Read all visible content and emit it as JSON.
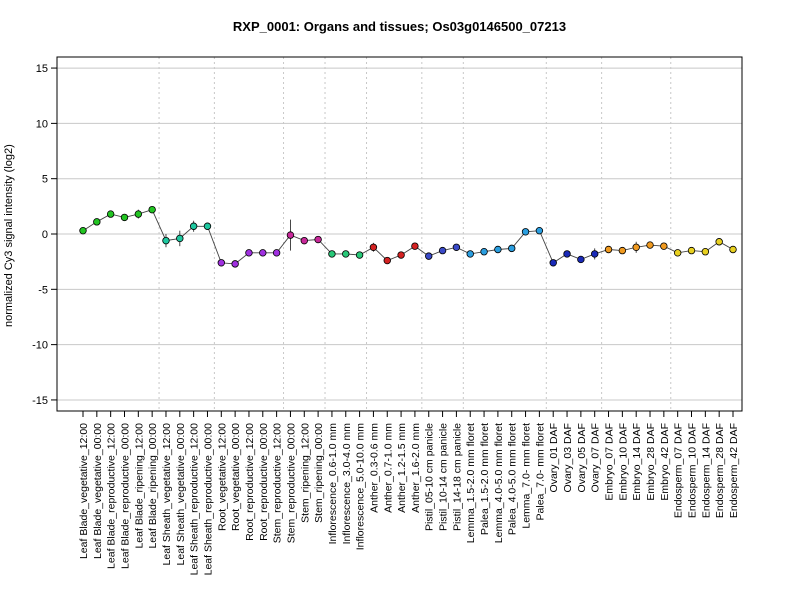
{
  "chart_data": {
    "type": "line",
    "title": "RXP_0001: Organs and tissues; Os03g0146500_07213",
    "xlabel": "",
    "ylabel": "normalized Cy3 signal intensity (log2)",
    "ylim": [
      -16,
      16
    ],
    "yticks": [
      -15,
      -10,
      -5,
      0,
      5,
      10,
      15
    ],
    "grid": "horizontal solid gridlines; vertical dotted separators between tissue groups",
    "legend": "none",
    "categories": [
      "Leaf Blade_vegetative_12:00",
      "Leaf Blade_vegetative_00:00",
      "Leaf Blade_reproductive_12:00",
      "Leaf Blade_reproductive_00:00",
      "Leaf Blade_ripening_12:00",
      "Leaf Blade_ripening_00:00",
      "Leaf Sheath_vegetative_12:00",
      "Leaf Sheath_vegetative_00:00",
      "Leaf Sheath_reproductive_12:00",
      "Leaf Sheath_reproductive_00:00",
      "Root_vegetative_12:00",
      "Root_vegetative_00:00",
      "Root_reproductive_12:00",
      "Root_reproductive_00:00",
      "Stem_reproductive_12:00",
      "Stem_reproductive_00:00",
      "Stem_ripening_12:00",
      "Stem_ripening_00:00",
      "Inflorescence_0.6-1.0 mm",
      "Inflorescence_3.0-4.0 mm",
      "Inflorescence_5.0-10.0 mm",
      "Anther_0.3-0.6 mm",
      "Anther_0.7-1.0 mm",
      "Anther_1.2-1.5 mm",
      "Anther_1.6-2.0 mm",
      "Pistil_05-10 cm panicle",
      "Pistil_10-14 cm panicle",
      "Pistil_14-18 cm panicle",
      "Lemma_1.5-2.0 mm floret",
      "Palea_1.5-2.0 mm floret",
      "Lemma_4.0-5.0 mm floret",
      "Palea_4.0-5.0 mm floret",
      "Lemma_7.0- mm floret",
      "Palea_7.0- mm floret",
      "Ovary_01 DAF",
      "Ovary_03 DAF",
      "Ovary_05 DAF",
      "Ovary_07 DAF",
      "Embryo_07 DAF",
      "Embryo_10 DAF",
      "Embryo_14 DAF",
      "Embryo_28 DAF",
      "Embryo_42 DAF",
      "Endosperm_07 DAF",
      "Endosperm_10 DAF",
      "Endosperm_14 DAF",
      "Endosperm_28 DAF",
      "Endosperm_42 DAF"
    ],
    "values": [
      0.3,
      1.1,
      1.8,
      1.5,
      1.8,
      2.2,
      -0.6,
      -0.4,
      0.7,
      0.7,
      -2.6,
      -2.7,
      -1.7,
      -1.7,
      -1.7,
      -0.1,
      -0.6,
      -0.5,
      -1.8,
      -1.8,
      -1.9,
      -1.2,
      -2.4,
      -1.9,
      -1.1,
      -2.0,
      -1.5,
      -1.2,
      -1.8,
      -1.6,
      -1.4,
      -1.3,
      0.2,
      0.3,
      -2.6,
      -1.8,
      -2.3,
      -1.8,
      -1.4,
      -1.5,
      -1.2,
      -1.0,
      -1.1,
      -1.7,
      -1.5,
      -1.6,
      -0.7,
      -1.4
    ],
    "errors": [
      0.1,
      0.2,
      0.2,
      0.1,
      0.4,
      0.1,
      0.6,
      0.7,
      0.5,
      0.2,
      0.1,
      0.1,
      0.1,
      0.1,
      0.2,
      1.4,
      0.2,
      0.2,
      0.3,
      0.2,
      0.2,
      0.4,
      0.2,
      0.2,
      0.2,
      0.2,
      0.2,
      0.2,
      0.2,
      0.3,
      0.2,
      0.2,
      0.3,
      0.3,
      0.2,
      0.2,
      0.2,
      0.5,
      0.2,
      0.2,
      0.5,
      0.2,
      0.2,
      0.3,
      0.2,
      0.3,
      0.2,
      0.2
    ],
    "point_colors": [
      "#22c422",
      "#22c422",
      "#22c422",
      "#22c422",
      "#22c422",
      "#22c422",
      "#1ec8a0",
      "#1ec8a0",
      "#1ec8a0",
      "#1ec8a0",
      "#a030e0",
      "#a030e0",
      "#a030e0",
      "#a030e0",
      "#a030e0",
      "#c8289a",
      "#c8289a",
      "#c8289a",
      "#28c878",
      "#28c878",
      "#28c878",
      "#d42222",
      "#d42222",
      "#d42222",
      "#d42222",
      "#3a4ac8",
      "#3a4ac8",
      "#3a4ac8",
      "#2a9ee0",
      "#2a9ee0",
      "#2a9ee0",
      "#2a9ee0",
      "#2a9ee0",
      "#2a9ee0",
      "#1a2ab8",
      "#1a2ab8",
      "#1a2ab8",
      "#1a2ab8",
      "#f09a20",
      "#f09a20",
      "#f09a20",
      "#f09a20",
      "#f09a20",
      "#e8d020",
      "#e8d020",
      "#e8d020",
      "#e8d020",
      "#e8d020"
    ],
    "group_boundaries_after_index": [
      5,
      9,
      14,
      17,
      20,
      24,
      27,
      33,
      37,
      42
    ]
  }
}
